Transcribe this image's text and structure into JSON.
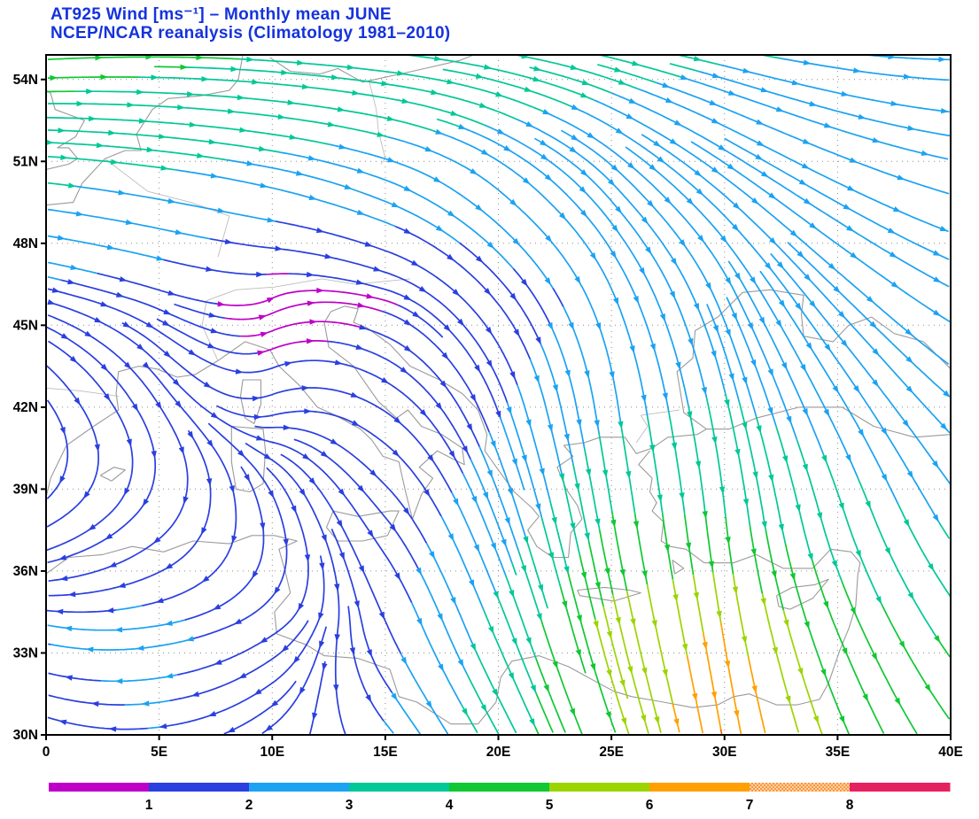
{
  "chart_data": {
    "type": "streamline",
    "title": {
      "line1": "AT925 Wind [ms⁻¹] – Monthly mean JUNE",
      "line2": "NCEP/NCAR reanalysis (Climatology 1981–2010)"
    },
    "title_color": "#1533dd",
    "x_axis": {
      "labels": [
        "0",
        "5E",
        "10E",
        "15E",
        "20E",
        "25E",
        "30E",
        "35E",
        "40E"
      ],
      "values": [
        0,
        5,
        10,
        15,
        20,
        25,
        30,
        35,
        40
      ]
    },
    "y_axis": {
      "labels": [
        "30N",
        "33N",
        "36N",
        "39N",
        "42N",
        "45N",
        "48N",
        "51N",
        "54N"
      ],
      "values": [
        30,
        33,
        36,
        39,
        42,
        45,
        48,
        51,
        54
      ]
    },
    "lon_range": [
      0,
      40
    ],
    "lat_range": [
      30,
      54.9
    ],
    "grid_lons": [
      5,
      10,
      15,
      20,
      25,
      30,
      35
    ],
    "grid_lats": [
      33,
      36,
      39,
      42,
      45,
      48,
      51,
      54
    ],
    "grid_on": true,
    "colorbar": {
      "levels": [
        1,
        2,
        3,
        4,
        5,
        6,
        7,
        8
      ],
      "labels": [
        "1",
        "2",
        "3",
        "4",
        "5",
        "6",
        "7",
        "8"
      ],
      "colors": [
        "#be00c8",
        "#2a3fe0",
        "#1ba2f2",
        "#00c896",
        "#0fc832",
        "#9cd400",
        "#ffa000",
        "#f06800",
        "#e6215f"
      ],
      "dotted_segment_index": 7,
      "dotted_bg": "#ffd2a0",
      "dotted_dot": "#ef6c00",
      "units": "ms⁻¹"
    },
    "wind_grid": {
      "comment_units": "u eastward and v northward wind in m/s on lon-lat grid, monthly mean",
      "lons": [
        0,
        5,
        10,
        15,
        20,
        25,
        30,
        35,
        40
      ],
      "lats": [
        30,
        34,
        38,
        42,
        46,
        50,
        55
      ],
      "u": [
        [
          -1.8,
          -2.0,
          -1.2,
          1.5,
          2.0,
          2.0,
          1.5,
          2.2,
          2.8
        ],
        [
          -2.0,
          -2.2,
          -1.5,
          0.8,
          1.5,
          1.5,
          1.2,
          2.0,
          2.5
        ],
        [
          -1.5,
          -1.0,
          0.5,
          1.2,
          1.0,
          0.8,
          0.5,
          1.2,
          1.8
        ],
        [
          1.0,
          1.2,
          1.4,
          1.5,
          0.8,
          0.5,
          0.8,
          1.5,
          1.6
        ],
        [
          1.8,
          1.5,
          0.5,
          0.9,
          1.2,
          1.0,
          1.2,
          1.8,
          2.2
        ],
        [
          3.0,
          2.8,
          2.6,
          2.4,
          2.2,
          2.0,
          2.2,
          2.4,
          2.6
        ],
        [
          4.5,
          4.2,
          4.0,
          3.8,
          3.5,
          3.2,
          3.0,
          3.0,
          3.0
        ]
      ],
      "v": [
        [
          0.5,
          -0.2,
          -0.8,
          -1.5,
          -3.0,
          -4.5,
          -7.0,
          -4.5,
          -3.2
        ],
        [
          0.3,
          -0.3,
          -0.8,
          -1.5,
          -3.0,
          -5.2,
          -6.0,
          -4.0,
          -3.0
        ],
        [
          -0.8,
          -1.0,
          -1.5,
          -1.2,
          -2.2,
          -4.0,
          -4.0,
          -3.2,
          -2.3
        ],
        [
          -1.3,
          -1.6,
          0.4,
          -0.8,
          -1.8,
          -2.8,
          -3.0,
          -2.2,
          -1.2
        ],
        [
          -0.4,
          -0.4,
          0.2,
          -0.2,
          -1.2,
          -2.0,
          -2.2,
          -1.5,
          -1.0
        ],
        [
          -0.3,
          -0.4,
          -0.5,
          -0.8,
          -1.5,
          -1.8,
          -1.5,
          -1.0,
          -0.6
        ],
        [
          0.2,
          0.0,
          -0.2,
          -0.3,
          -0.5,
          -0.6,
          -0.5,
          -0.3,
          0.0
        ]
      ]
    },
    "coastlines": [
      [
        [
          0,
          38.7
        ],
        [
          0.2,
          39.4
        ],
        [
          0.9,
          40.6
        ],
        [
          2.1,
          41.3
        ],
        [
          3.2,
          41.9
        ],
        [
          3.1,
          42.5
        ],
        [
          3.2,
          43.3
        ],
        [
          4.1,
          43.5
        ],
        [
          4.9,
          43.4
        ],
        [
          5.8,
          43.1
        ],
        [
          6.6,
          43.2
        ],
        [
          7.6,
          43.7
        ],
        [
          8.8,
          44.4
        ],
        [
          9.9,
          44.1
        ],
        [
          10.3,
          43.5
        ],
        [
          11.2,
          42.8
        ],
        [
          12.0,
          42.0
        ],
        [
          12.8,
          41.7
        ],
        [
          13.9,
          41.2
        ],
        [
          14.4,
          40.8
        ],
        [
          14.9,
          40.2
        ],
        [
          15.6,
          40.0
        ],
        [
          15.9,
          38.9
        ],
        [
          16.2,
          37.9
        ],
        [
          16.6,
          38.8
        ],
        [
          17.1,
          39.4
        ],
        [
          16.5,
          39.8
        ],
        [
          17.3,
          40.4
        ],
        [
          18.0,
          40.1
        ],
        [
          18.5,
          39.9
        ],
        [
          18.4,
          40.5
        ],
        [
          17.5,
          41.0
        ],
        [
          16.6,
          41.3
        ],
        [
          16.0,
          41.9
        ],
        [
          15.5,
          41.6
        ],
        [
          14.7,
          42.2
        ],
        [
          13.6,
          43.5
        ],
        [
          12.5,
          44.2
        ],
        [
          12.3,
          45.1
        ],
        [
          12.6,
          45.5
        ],
        [
          13.2,
          45.7
        ],
        [
          13.8,
          45.6
        ],
        [
          13.6,
          45.1
        ],
        [
          14.2,
          44.9
        ],
        [
          15.2,
          44.3
        ],
        [
          16.1,
          43.5
        ],
        [
          17.4,
          43.0
        ],
        [
          18.4,
          42.5
        ],
        [
          19.1,
          41.9
        ],
        [
          19.5,
          41.0
        ],
        [
          19.4,
          40.4
        ],
        [
          20.0,
          39.7
        ],
        [
          20.7,
          38.9
        ],
        [
          21.5,
          38.3
        ],
        [
          21.8,
          38.0
        ],
        [
          21.3,
          37.5
        ],
        [
          21.7,
          36.9
        ],
        [
          22.4,
          36.5
        ],
        [
          23.1,
          36.5
        ],
        [
          23.2,
          37.4
        ],
        [
          23.7,
          37.9
        ],
        [
          23.5,
          38.4
        ],
        [
          23.0,
          39.0
        ],
        [
          22.6,
          39.8
        ],
        [
          23.3,
          40.2
        ],
        [
          22.9,
          40.6
        ],
        [
          23.8,
          40.7
        ],
        [
          24.5,
          40.9
        ],
        [
          25.6,
          40.9
        ],
        [
          26.1,
          40.3
        ],
        [
          26.8,
          40.5
        ],
        [
          27.5,
          40.9
        ],
        [
          28.8,
          41.0
        ],
        [
          29.2,
          41.2
        ]
      ],
      [
        [
          29.2,
          41.2
        ],
        [
          28.2,
          41.8
        ],
        [
          28.0,
          42.8
        ],
        [
          27.9,
          43.3
        ],
        [
          28.6,
          43.8
        ],
        [
          28.7,
          44.8
        ],
        [
          29.7,
          45.3
        ],
        [
          30.8,
          46.2
        ],
        [
          32.0,
          46.3
        ],
        [
          33.5,
          46.1
        ],
        [
          33.4,
          45.4
        ],
        [
          33.5,
          44.6
        ],
        [
          34.8,
          44.4
        ],
        [
          35.5,
          45.0
        ],
        [
          36.5,
          45.3
        ],
        [
          37.5,
          44.7
        ],
        [
          38.8,
          44.4
        ],
        [
          40,
          43.4
        ]
      ],
      [
        [
          40,
          41.0
        ],
        [
          38.4,
          40.9
        ],
        [
          36.6,
          41.3
        ],
        [
          35.2,
          42.0
        ],
        [
          33.3,
          42.0
        ],
        [
          31.4,
          41.6
        ],
        [
          30.2,
          41.2
        ],
        [
          29.2,
          41.2
        ]
      ],
      [
        [
          26.7,
          40.4
        ],
        [
          26.2,
          39.9
        ],
        [
          26.8,
          39.4
        ],
        [
          26.7,
          38.9
        ],
        [
          27.0,
          38.5
        ],
        [
          26.8,
          38.2
        ],
        [
          27.3,
          37.8
        ],
        [
          27.2,
          37.1
        ],
        [
          27.6,
          36.9
        ],
        [
          28.3,
          36.8
        ],
        [
          29.1,
          36.3
        ],
        [
          30.4,
          36.3
        ],
        [
          31.4,
          36.6
        ],
        [
          32.6,
          36.1
        ],
        [
          33.9,
          36.1
        ],
        [
          34.7,
          36.8
        ],
        [
          35.6,
          36.7
        ],
        [
          36.0,
          36.3
        ],
        [
          35.9,
          35.9
        ],
        [
          35.8,
          34.7
        ],
        [
          35.5,
          33.9
        ],
        [
          35.1,
          33.1
        ],
        [
          34.6,
          31.9
        ],
        [
          34.2,
          31.3
        ],
        [
          33.2,
          31.1
        ],
        [
          32.3,
          31.1
        ],
        [
          31.1,
          31.5
        ],
        [
          30.4,
          31.4
        ],
        [
          29.7,
          31.1
        ],
        [
          28.6,
          31.0
        ],
        [
          27.3,
          31.2
        ],
        [
          25.9,
          31.4
        ],
        [
          25.1,
          31.6
        ],
        [
          24.2,
          32.0
        ],
        [
          23.1,
          32.5
        ],
        [
          21.8,
          32.9
        ],
        [
          20.6,
          32.7
        ],
        [
          20.1,
          32.1
        ],
        [
          19.9,
          31.2
        ],
        [
          19.1,
          30.4
        ],
        [
          17.9,
          30.4
        ],
        [
          16.4,
          31.2
        ],
        [
          15.6,
          31.4
        ],
        [
          15.2,
          32.4
        ],
        [
          13.8,
          32.8
        ],
        [
          12.3,
          32.9
        ],
        [
          11.5,
          33.3
        ],
        [
          10.2,
          33.7
        ],
        [
          10.1,
          34.5
        ],
        [
          10.8,
          35.2
        ],
        [
          10.6,
          35.9
        ],
        [
          10.3,
          36.8
        ],
        [
          11.1,
          37.1
        ],
        [
          10.1,
          37.3
        ],
        [
          9.1,
          37.3
        ],
        [
          8.1,
          37.0
        ],
        [
          6.5,
          37.1
        ],
        [
          5.2,
          36.7
        ],
        [
          3.8,
          36.9
        ],
        [
          2.5,
          36.6
        ],
        [
          1.0,
          36.5
        ],
        [
          0,
          35.9
        ]
      ],
      [
        [
          0,
          49.4
        ],
        [
          1.2,
          49.5
        ],
        [
          1.6,
          50.2
        ],
        [
          2.6,
          51.1
        ],
        [
          3.5,
          51.4
        ],
        [
          4.2,
          51.4
        ],
        [
          4.0,
          52.0
        ],
        [
          4.7,
          52.9
        ],
        [
          5.4,
          53.3
        ],
        [
          6.8,
          53.4
        ],
        [
          8.1,
          53.6
        ],
        [
          8.5,
          54.0
        ],
        [
          8.7,
          54.9
        ]
      ],
      [
        [
          0,
          50.7
        ],
        [
          1.0,
          50.9
        ],
        [
          1.4,
          51.1
        ],
        [
          1.0,
          51.5
        ],
        [
          0.5,
          51.5
        ],
        [
          1.3,
          51.9
        ],
        [
          1.7,
          52.5
        ],
        [
          0.4,
          52.9
        ],
        [
          0.2,
          53.5
        ],
        [
          0,
          53.6
        ]
      ],
      [
        [
          9.9,
          54.8
        ],
        [
          10.8,
          54.3
        ],
        [
          12.1,
          54.2
        ],
        [
          12.9,
          54.4
        ],
        [
          14.0,
          53.9
        ],
        [
          16.2,
          54.3
        ],
        [
          18.3,
          54.7
        ],
        [
          18.9,
          54.9
        ]
      ],
      [
        [
          12.4,
          37.6
        ],
        [
          12.7,
          38.2
        ],
        [
          13.8,
          38.0
        ],
        [
          15.2,
          38.2
        ],
        [
          15.6,
          38.2
        ],
        [
          15.1,
          37.3
        ],
        [
          14.0,
          37.1
        ],
        [
          12.9,
          37.1
        ],
        [
          12.4,
          37.6
        ]
      ],
      [
        [
          8.2,
          41.3
        ],
        [
          9.6,
          41.2
        ],
        [
          9.7,
          40.4
        ],
        [
          9.6,
          39.2
        ],
        [
          9.0,
          38.9
        ],
        [
          8.4,
          39.0
        ],
        [
          8.2,
          40.0
        ],
        [
          8.2,
          41.3
        ]
      ],
      [
        [
          8.6,
          42.4
        ],
        [
          8.7,
          43.0
        ],
        [
          9.5,
          43.0
        ],
        [
          9.5,
          42.1
        ],
        [
          9.2,
          41.4
        ],
        [
          8.8,
          41.6
        ],
        [
          8.6,
          42.4
        ]
      ],
      [
        [
          23.5,
          35.3
        ],
        [
          24.7,
          35.4
        ],
        [
          25.8,
          35.3
        ],
        [
          26.3,
          35.2
        ],
        [
          25.1,
          34.9
        ],
        [
          23.6,
          35.1
        ],
        [
          23.5,
          35.3
        ]
      ],
      [
        [
          32.3,
          35.1
        ],
        [
          33.0,
          35.4
        ],
        [
          34.0,
          35.5
        ],
        [
          34.6,
          35.7
        ],
        [
          33.9,
          35.0
        ],
        [
          32.9,
          34.6
        ],
        [
          32.4,
          34.7
        ],
        [
          32.3,
          35.1
        ]
      ],
      [
        [
          2.4,
          39.5
        ],
        [
          3.0,
          39.8
        ],
        [
          3.5,
          39.7
        ],
        [
          2.9,
          39.3
        ],
        [
          2.4,
          39.5
        ]
      ],
      [
        [
          27.7,
          36.4
        ],
        [
          28.2,
          36.1
        ],
        [
          27.8,
          35.9
        ],
        [
          27.7,
          36.4
        ]
      ]
    ],
    "borders": [
      [
        [
          0,
          42.7
        ],
        [
          1.5,
          42.6
        ],
        [
          3.2,
          42.4
        ]
      ],
      [
        [
          7.6,
          43.7
        ],
        [
          6.9,
          45.0
        ],
        [
          7.1,
          45.9
        ]
      ],
      [
        [
          7.1,
          45.9
        ],
        [
          8.4,
          46.3
        ],
        [
          10.1,
          46.4
        ],
        [
          12.2,
          46.7
        ],
        [
          13.7,
          46.5
        ],
        [
          16.1,
          46.7
        ]
      ],
      [
        [
          2.6,
          51.1
        ],
        [
          4.5,
          49.9
        ],
        [
          6.4,
          49.5
        ],
        [
          8.1,
          49.0
        ],
        [
          7.6,
          47.5
        ]
      ],
      [
        [
          14.3,
          53.9
        ],
        [
          14.6,
          52.9
        ],
        [
          14.7,
          52.1
        ],
        [
          15.0,
          51.1
        ],
        [
          14.8,
          50.9
        ]
      ],
      [
        [
          26.3,
          41.7
        ],
        [
          26.6,
          41.3
        ],
        [
          26.1,
          40.7
        ]
      ],
      [
        [
          26.3,
          41.7
        ],
        [
          28.0,
          41.9
        ]
      ]
    ]
  }
}
